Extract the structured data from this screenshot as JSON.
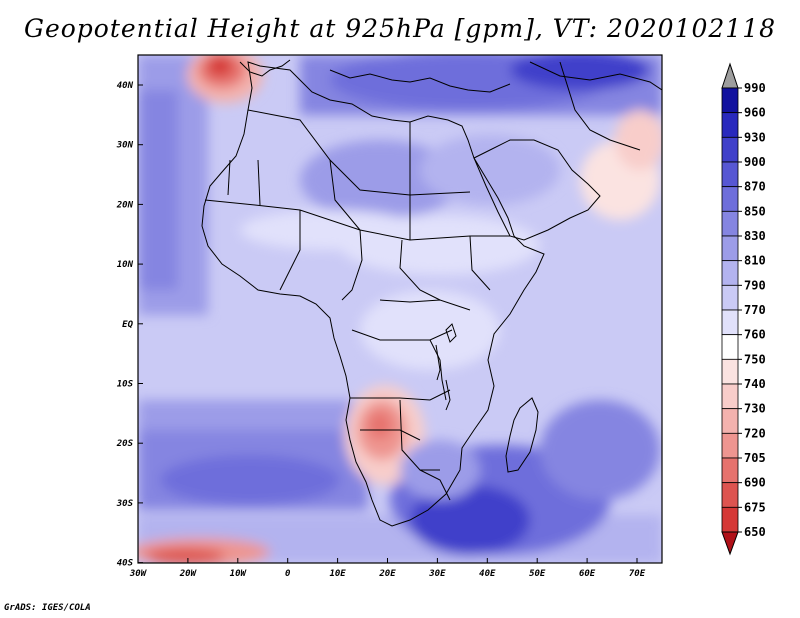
{
  "title": "Geopotential Height at 925hPa [gpm], VT: 2020102118",
  "credit": "GrADS: IGES/COLA",
  "map": {
    "lon_range": [
      -30,
      75
    ],
    "lat_range": [
      -40,
      45
    ],
    "lat_ticks": [
      "40N",
      "30N",
      "20N",
      "10N",
      "EQ",
      "10S",
      "20S",
      "30S",
      "40S"
    ],
    "lon_ticks": [
      "30W",
      "20W",
      "10W",
      "0",
      "10E",
      "20E",
      "30E",
      "40E",
      "50E",
      "60E",
      "70E"
    ]
  },
  "legend": {
    "levels": [
      "650",
      "675",
      "690",
      "705",
      "720",
      "730",
      "740",
      "750",
      "760",
      "770",
      "790",
      "810",
      "830",
      "850",
      "870",
      "900",
      "930",
      "960",
      "990"
    ],
    "colors": [
      "#c81e24",
      "#d53836",
      "#dd5450",
      "#e6726d",
      "#ee9590",
      "#f3b2ae",
      "#f8cdca",
      "#fbe3e1",
      "#ffffff",
      "#e1e1fb",
      "#cacaf5",
      "#b3b3ef",
      "#9c9ce8",
      "#8585e1",
      "#6e6edb",
      "#5757d3",
      "#4040ca",
      "#2929bd",
      "#12129f"
    ],
    "over_color": "#9e9e9e",
    "under_color": "#b01018"
  }
}
